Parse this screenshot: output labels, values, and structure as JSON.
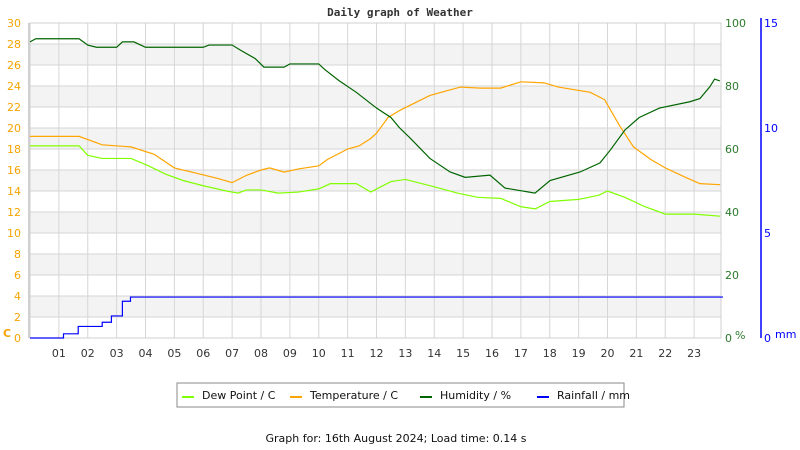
{
  "chart_data": {
    "type": "line",
    "title": "Daily graph of Weather",
    "x_ticks": [
      "01",
      "02",
      "03",
      "04",
      "05",
      "06",
      "07",
      "08",
      "09",
      "10",
      "11",
      "12",
      "13",
      "14",
      "15",
      "16",
      "17",
      "18",
      "19",
      "20",
      "21",
      "22",
      "23"
    ],
    "xlim": [
      0,
      24
    ],
    "left_axis": {
      "unit": "C",
      "ylim": [
        0,
        30
      ],
      "ticks": [
        "0",
        "2",
        "4",
        "6",
        "8",
        "10",
        "12",
        "14",
        "16",
        "18",
        "20",
        "22",
        "24",
        "26",
        "28",
        "30"
      ]
    },
    "right_axis": {
      "unit": "%",
      "ylim": [
        0,
        100
      ],
      "ticks": [
        "0",
        "20",
        "40",
        "60",
        "80",
        "100"
      ]
    },
    "rain_axis": {
      "unit": "mm",
      "ylim": [
        0,
        15
      ],
      "ticks": [
        "0",
        "5",
        "10",
        "15"
      ]
    },
    "grid": true,
    "legend_position": "bottom",
    "series": [
      {
        "name": "Dew Point / C",
        "axis": "left",
        "color": "#80ff00",
        "x": [
          0,
          1.7,
          2,
          2.5,
          3.5,
          4.1,
          4.7,
          5.3,
          6,
          6.8,
          7.2,
          7.5,
          8,
          8.6,
          9.3,
          10,
          10.4,
          11.3,
          11.8,
          12.5,
          13,
          14,
          14.8,
          15.5,
          16.3,
          17,
          17.5,
          18,
          19,
          19.7,
          20,
          20.6,
          21.3,
          22,
          23,
          23.9
        ],
        "y": [
          18.3,
          18.3,
          17.4,
          17.1,
          17.1,
          16.4,
          15.6,
          15.0,
          14.5,
          14.0,
          13.8,
          14.1,
          14.1,
          13.8,
          13.9,
          14.2,
          14.7,
          14.7,
          13.9,
          14.9,
          15.1,
          14.4,
          13.8,
          13.4,
          13.3,
          12.5,
          12.3,
          13.0,
          13.2,
          13.6,
          14.0,
          13.4,
          12.5,
          11.8,
          11.8,
          11.6
        ]
      },
      {
        "name": "Temperature / C",
        "axis": "left",
        "color": "#ffa500",
        "x": [
          0,
          1.7,
          2.5,
          3.5,
          4.3,
          5,
          5.6,
          6.5,
          7,
          7.5,
          8,
          8.3,
          8.8,
          9.3,
          10,
          10.3,
          11,
          11.4,
          11.8,
          12,
          12.4,
          12.82,
          13.85,
          14.9,
          15.6,
          16.3,
          17.0,
          17.8,
          18.3,
          19.4,
          19.9,
          20.4,
          20.9,
          21.5,
          22.0,
          22.7,
          23.2,
          23.9
        ],
        "y": [
          19.2,
          19.2,
          18.4,
          18.2,
          17.5,
          16.2,
          15.8,
          15.2,
          14.8,
          15.5,
          16.0,
          16.2,
          15.8,
          16.1,
          16.4,
          17.0,
          18.0,
          18.3,
          19.0,
          19.5,
          21.0,
          21.7,
          23.1,
          23.9,
          23.8,
          23.8,
          24.4,
          24.3,
          23.9,
          23.4,
          22.7,
          20.3,
          18.2,
          17.0,
          16.2,
          15.3,
          14.7,
          14.6
        ]
      },
      {
        "name": "Humidity / %",
        "axis": "right",
        "color": "#006400",
        "x": [
          0,
          0.2,
          1.7,
          2,
          2.3,
          3,
          3.2,
          3.6,
          4,
          6,
          6.2,
          7,
          7.3,
          7.8,
          8.1,
          8.8,
          9,
          10,
          10.2,
          10.7,
          11.3,
          12,
          12.5,
          12.8,
          13.16,
          13.85,
          14.55,
          15.07,
          15.93,
          16.45,
          17.49,
          18.01,
          19.05,
          19.74,
          20.1,
          20.6,
          21.1,
          21.8,
          22.85,
          23.2,
          23.54,
          23.71,
          23.89
        ],
        "y": [
          94,
          95,
          95,
          93,
          92.3,
          92.3,
          94,
          94,
          92.3,
          92.3,
          93,
          93,
          91.3,
          88.7,
          86,
          86,
          87,
          87,
          85.3,
          81.7,
          78,
          73,
          70,
          66.7,
          63.5,
          57,
          52.7,
          51,
          51.7,
          47.6,
          46,
          50,
          52.7,
          55.6,
          59.7,
          66,
          70,
          73,
          75,
          76,
          79.7,
          82.2,
          81.6
        ]
      },
      {
        "name": "Rainfall / mm",
        "axis": "rain",
        "color": "#0000ff",
        "x": [
          0,
          1.16,
          1.67,
          2.5,
          2.82,
          3.2,
          3.48,
          24
        ],
        "y": [
          0,
          0.2,
          0.55,
          0.75,
          1.05,
          1.75,
          1.95,
          1.95
        ]
      }
    ]
  },
  "footer": "Graph for: 16th August 2024; Load time: 0.14 s"
}
